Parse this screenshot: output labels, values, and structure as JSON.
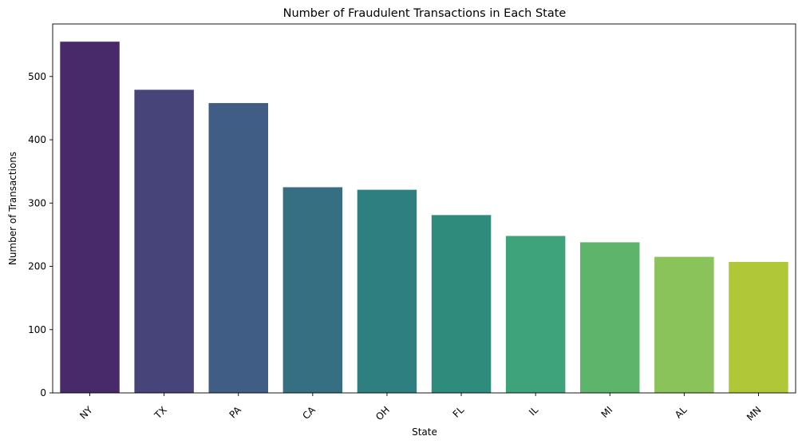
{
  "chart_data": {
    "type": "bar",
    "title": "Number of Fraudulent Transactions in Each State",
    "xlabel": "State",
    "ylabel": "Number of Transactions",
    "categories": [
      "NY",
      "TX",
      "PA",
      "CA",
      "OH",
      "FL",
      "IL",
      "MI",
      "AL",
      "MN"
    ],
    "values": [
      555,
      479,
      458,
      325,
      321,
      281,
      248,
      238,
      215,
      207
    ],
    "ylim": [
      0,
      583
    ],
    "yticks": [
      0,
      100,
      200,
      300,
      400,
      500
    ],
    "grid": false,
    "legend": "none",
    "xtick_rotation": 45,
    "colors": [
      "#482a6a",
      "#474479",
      "#405d85",
      "#376f82",
      "#2e7f80",
      "#2f8c7c",
      "#3ea27a",
      "#5fb46c",
      "#8bc35b",
      "#b0c838"
    ]
  }
}
